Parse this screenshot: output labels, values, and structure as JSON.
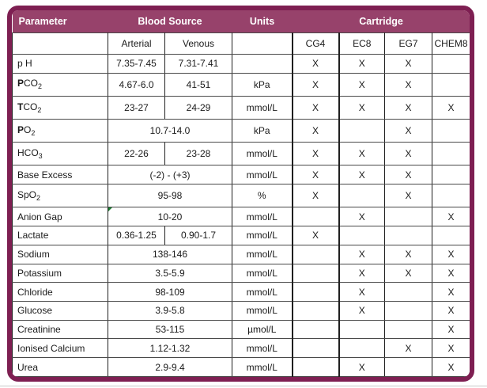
{
  "colors": {
    "frame": "#7e1f52",
    "header_band": "#97426b",
    "header_text": "#ffffff",
    "grid_horizontal": "#4a4a4a",
    "grid_vertical": "#1f1f1f",
    "text": "#1a1a1a",
    "flag_triangle_green": "#1e7e34"
  },
  "table": {
    "header": {
      "parameter": "Parameter",
      "blood_source": "Blood Source",
      "units": "Units",
      "cartridge": "Cartridge"
    },
    "subheader": {
      "arterial": "Arterial",
      "venous": "Venous",
      "cartridges": [
        "CG4",
        "EC8",
        "EG7",
        "CHEM8"
      ]
    },
    "rows": [
      {
        "param": [
          [
            "n",
            "p H"
          ]
        ],
        "source": [
          "7.35-7.45",
          "7.31-7.41"
        ],
        "units": "",
        "marks": [
          "X",
          "X",
          "X",
          ""
        ]
      },
      {
        "param": [
          [
            "b",
            "P"
          ],
          [
            "n",
            "CO"
          ],
          [
            "s",
            "2"
          ]
        ],
        "source": [
          "4.67-6.0",
          "41-51"
        ],
        "units": "kPa",
        "marks": [
          "X",
          "X",
          "X",
          ""
        ]
      },
      {
        "param": [
          [
            "b",
            "T"
          ],
          [
            "n",
            "CO"
          ],
          [
            "s",
            "2"
          ]
        ],
        "source": [
          "23-27",
          "24-29"
        ],
        "units": "mmol/L",
        "marks": [
          "X",
          "X",
          "X",
          "X"
        ]
      },
      {
        "param": [
          [
            "b",
            "P"
          ],
          [
            "n",
            "O"
          ],
          [
            "s",
            "2"
          ]
        ],
        "source": [
          "10.7-14.0"
        ],
        "units": "kPa",
        "marks": [
          "X",
          "",
          "X",
          ""
        ]
      },
      {
        "param": [
          [
            "n",
            "HCO"
          ],
          [
            "s",
            "3"
          ]
        ],
        "source": [
          "22-26",
          "23-28"
        ],
        "units": "mmol/L",
        "marks": [
          "X",
          "X",
          "X",
          ""
        ]
      },
      {
        "param": [
          [
            "n",
            "Base Excess"
          ]
        ],
        "source": [
          "(-2) - (+3)"
        ],
        "units": "mmol/L",
        "marks": [
          "X",
          "X",
          "X",
          ""
        ]
      },
      {
        "param": [
          [
            "n",
            "SpO"
          ],
          [
            "s",
            "2"
          ]
        ],
        "source": [
          "95-98"
        ],
        "units": "%",
        "marks": [
          "X",
          "",
          "X",
          ""
        ]
      },
      {
        "param": [
          [
            "n",
            "Anion Gap"
          ]
        ],
        "source": [
          "10-20"
        ],
        "units": "mmol/L",
        "marks": [
          "",
          "X",
          "",
          "X"
        ],
        "flag": true
      },
      {
        "param": [
          [
            "n",
            "Lactate"
          ]
        ],
        "source": [
          "0.36-1.25",
          "0.90-1.7"
        ],
        "units": "mmol/L",
        "marks": [
          "X",
          "",
          "",
          ""
        ]
      },
      {
        "param": [
          [
            "n",
            "Sodium"
          ]
        ],
        "source": [
          "138-146"
        ],
        "units": "mmol/L",
        "marks": [
          "",
          "X",
          "X",
          "X"
        ]
      },
      {
        "param": [
          [
            "n",
            "Potassium"
          ]
        ],
        "source": [
          "3.5-5.9"
        ],
        "units": "mmol/L",
        "marks": [
          "",
          "X",
          "X",
          "X"
        ]
      },
      {
        "param": [
          [
            "n",
            "Chloride"
          ]
        ],
        "source": [
          "98-109"
        ],
        "units": "mmol/L",
        "marks": [
          "",
          "X",
          "",
          "X"
        ]
      },
      {
        "param": [
          [
            "n",
            "Glucose"
          ]
        ],
        "source": [
          "3.9-5.8"
        ],
        "units": "mmol/L",
        "marks": [
          "",
          "X",
          "",
          "X"
        ]
      },
      {
        "param": [
          [
            "n",
            "Creatinine"
          ]
        ],
        "source": [
          "53-115"
        ],
        "units": "µmol/L",
        "marks": [
          "",
          "",
          "",
          "X"
        ]
      },
      {
        "param": [
          [
            "n",
            "Ionised Calcium"
          ]
        ],
        "source": [
          "1.12-1.32"
        ],
        "units": "mmol/L",
        "marks": [
          "",
          "",
          "X",
          "X"
        ]
      },
      {
        "param": [
          [
            "n",
            "Urea"
          ]
        ],
        "source": [
          "2.9-9.4"
        ],
        "units": "mmol/L",
        "marks": [
          "",
          "X",
          "",
          "X"
        ]
      }
    ]
  }
}
